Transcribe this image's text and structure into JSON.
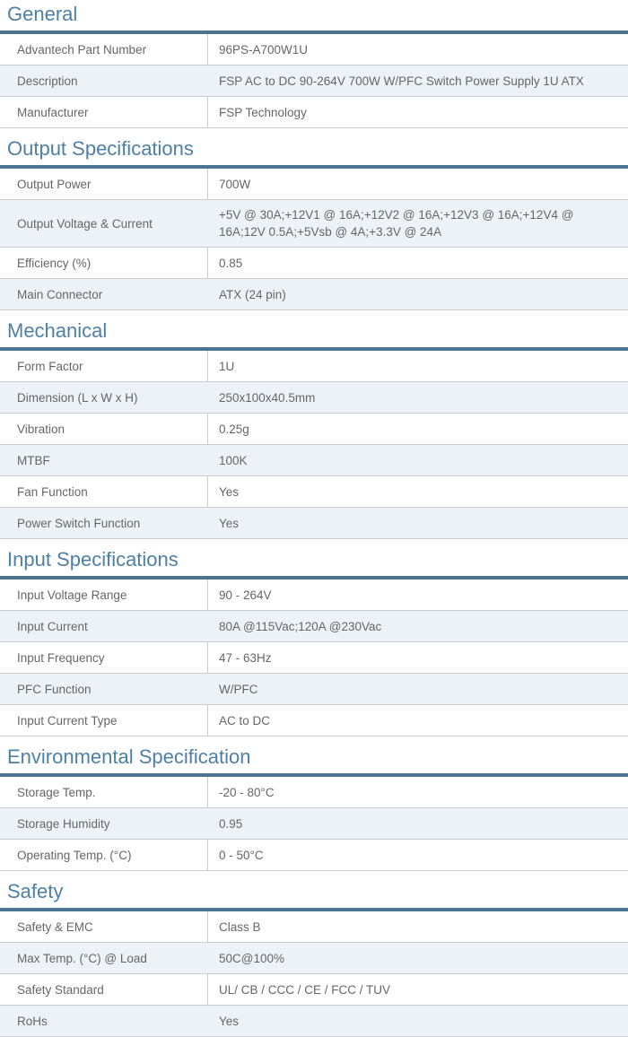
{
  "theme": {
    "heading_color": "#4e80a6",
    "bar_color": "#4c7390",
    "row_alt_color": "#ecf2f8",
    "text_color": "#666666",
    "border_color": "#cccccc"
  },
  "sections": [
    {
      "title": "General",
      "rows": [
        {
          "label": "Advantech Part Number",
          "value": "96PS-A700W1U"
        },
        {
          "label": "Description",
          "value": "FSP AC to DC 90-264V 700W W/PFC Switch Power Supply 1U ATX"
        },
        {
          "label": "Manufacturer",
          "value": "FSP Technology"
        }
      ]
    },
    {
      "title": "Output Specifications",
      "rows": [
        {
          "label": "Output Power",
          "value": "700W"
        },
        {
          "label": "Output Voltage & Current",
          "value": "+5V @ 30A;+12V1 @ 16A;+12V2 @ 16A;+12V3 @ 16A;+12V4 @ 16A;12V 0.5A;+5Vsb @ 4A;+3.3V @ 24A"
        },
        {
          "label": "Efficiency (%)",
          "value": "0.85"
        },
        {
          "label": "Main Connector",
          "value": "ATX (24 pin)"
        }
      ]
    },
    {
      "title": "Mechanical",
      "rows": [
        {
          "label": "Form Factor",
          "value": "1U"
        },
        {
          "label": "Dimension (L x W x H)",
          "value": "250x100x40.5mm"
        },
        {
          "label": "Vibration",
          "value": "0.25g"
        },
        {
          "label": "MTBF",
          "value": "100K"
        },
        {
          "label": "Fan Function",
          "value": "Yes"
        },
        {
          "label": "Power Switch Function",
          "value": "Yes"
        }
      ]
    },
    {
      "title": "Input Specifications",
      "rows": [
        {
          "label": "Input Voltage Range",
          "value": "90 - 264V"
        },
        {
          "label": "Input Current",
          "value": "80A @115Vac;120A @230Vac"
        },
        {
          "label": "Input Frequency",
          "value": "47 - 63Hz"
        },
        {
          "label": "PFC Function",
          "value": "W/PFC"
        },
        {
          "label": "Input Current Type",
          "value": "AC to DC"
        }
      ]
    },
    {
      "title": "Environmental Specification",
      "rows": [
        {
          "label": "Storage Temp.",
          "value": "-20 - 80°C"
        },
        {
          "label": "Storage Humidity",
          "value": "0.95"
        },
        {
          "label": "Operating Temp. (°C)",
          "value": "0 - 50°C"
        }
      ]
    },
    {
      "title": "Safety",
      "rows": [
        {
          "label": "Safety & EMC",
          "value": "Class B"
        },
        {
          "label": "Max Temp. (°C) @ Load",
          "value": "50C@100%"
        },
        {
          "label": "Safety Standard",
          "value": "UL/ CB / CCC / CE / FCC / TUV"
        },
        {
          "label": "RoHs",
          "value": "Yes"
        }
      ]
    }
  ]
}
